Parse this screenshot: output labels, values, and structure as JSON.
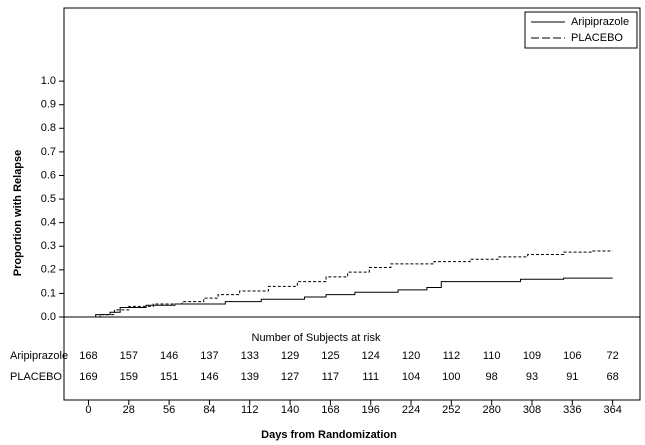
{
  "chart_data": {
    "type": "step",
    "y_label": "Proportion with Relapse",
    "x_label": "Days from Randomization",
    "xlim": [
      -17,
      383
    ],
    "xticks": [
      0,
      28,
      56,
      84,
      112,
      140,
      168,
      196,
      224,
      252,
      280,
      308,
      336,
      364
    ],
    "ylim": [
      0,
      1.31
    ],
    "yticks": [
      {
        "value": 0,
        "label": "0.0"
      },
      {
        "value": 0.1,
        "label": "0.1"
      },
      {
        "value": 0.2,
        "label": "0.2"
      },
      {
        "value": 0.3,
        "label": "0.3"
      },
      {
        "value": 0.4,
        "label": "0.4"
      },
      {
        "value": 0.5,
        "label": "0.5"
      },
      {
        "value": 0.6,
        "label": "0.6"
      },
      {
        "value": 0.7,
        "label": "0.7"
      },
      {
        "value": 0.8,
        "label": "0.8"
      },
      {
        "value": 0.9,
        "label": "0.9"
      },
      {
        "value": 1.0,
        "label": "1.0"
      }
    ],
    "legend_position": "upper right",
    "series": [
      {
        "name": "Aripiprazole",
        "color": "#000000",
        "dash": "solid",
        "x": [
          0,
          5,
          5,
          15,
          15,
          22,
          22,
          40,
          40,
          60,
          60,
          95,
          95,
          120,
          120,
          150,
          150,
          165,
          165,
          185,
          185,
          215,
          215,
          235,
          235,
          245,
          245,
          300,
          300,
          330,
          330,
          364
        ],
        "values": [
          0,
          0,
          0.01,
          0.01,
          0.02,
          0.02,
          0.04,
          0.04,
          0.05,
          0.05,
          0.055,
          0.055,
          0.065,
          0.065,
          0.075,
          0.075,
          0.085,
          0.085,
          0.095,
          0.095,
          0.105,
          0.105,
          0.115,
          0.115,
          0.125,
          0.125,
          0.15,
          0.15,
          0.16,
          0.16,
          0.165,
          0.165
        ]
      },
      {
        "name": "PLACEBO",
        "color": "#000000",
        "dash": "dashed",
        "x": [
          0,
          8,
          8,
          18,
          18,
          28,
          28,
          45,
          45,
          65,
          65,
          80,
          80,
          90,
          90,
          105,
          105,
          125,
          125,
          145,
          145,
          165,
          165,
          180,
          180,
          195,
          195,
          210,
          210,
          240,
          240,
          265,
          265,
          285,
          285,
          305,
          305,
          330,
          330,
          350,
          350,
          364
        ],
        "values": [
          0,
          0,
          0.01,
          0.01,
          0.03,
          0.03,
          0.045,
          0.045,
          0.055,
          0.055,
          0.065,
          0.065,
          0.08,
          0.08,
          0.095,
          0.095,
          0.11,
          0.11,
          0.13,
          0.13,
          0.15,
          0.15,
          0.17,
          0.17,
          0.19,
          0.19,
          0.21,
          0.21,
          0.225,
          0.225,
          0.235,
          0.235,
          0.245,
          0.245,
          0.255,
          0.255,
          0.265,
          0.265,
          0.275,
          0.275,
          0.28,
          0.28
        ]
      }
    ],
    "risk_table": {
      "title": "Number of Subjects at risk",
      "rows": [
        {
          "name": "Aripiprazole",
          "values": [
            168,
            157,
            146,
            137,
            133,
            129,
            125,
            124,
            120,
            112,
            110,
            109,
            106,
            72
          ]
        },
        {
          "name": "PLACEBO",
          "values": [
            169,
            159,
            151,
            146,
            139,
            127,
            117,
            111,
            104,
            100,
            98,
            93,
            91,
            68
          ]
        }
      ]
    }
  }
}
